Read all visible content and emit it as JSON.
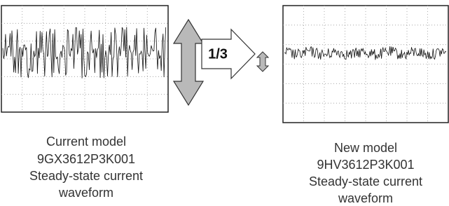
{
  "arrow_label": "1/3",
  "panels": [
    {
      "caption": [
        "Current model",
        "9GX3612P3K001",
        "Steady-state current",
        "waveform"
      ]
    },
    {
      "caption": [
        "New model",
        "9HV3612P3K001",
        "Steady-state current",
        "waveform"
      ]
    }
  ]
}
